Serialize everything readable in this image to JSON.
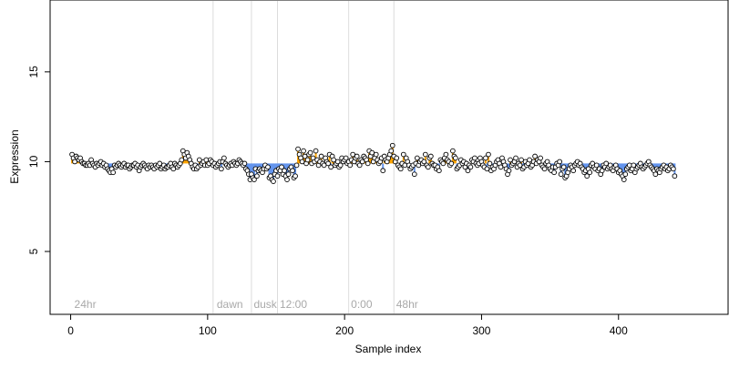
{
  "chart_data": {
    "type": "scatter",
    "title": "",
    "xlabel": "Sample index",
    "ylabel": "Expression",
    "xlim": [
      -15,
      480
    ],
    "ylim": [
      1.5,
      19.0
    ],
    "baseline": 9.9,
    "x_ticks": [
      0,
      100,
      200,
      300,
      400
    ],
    "y_ticks": [
      5,
      10,
      15
    ],
    "tick_labels_x": [
      "0",
      "100",
      "200",
      "300",
      "400"
    ],
    "tick_labels_y": [
      "5",
      "10",
      "15"
    ],
    "colors": {
      "above": "#ffa500",
      "below": "#6495ed",
      "point_stroke": "#000000",
      "point_fill": "#ffffff",
      "annotation": "#a9a9a9",
      "vline": "#dcdcdc"
    },
    "vlines": [
      104,
      132,
      151,
      203,
      236
    ],
    "annotations": [
      {
        "x": 2,
        "text": "24hr"
      },
      {
        "x": 106,
        "text": "dawn"
      },
      {
        "x": 133,
        "text": "dusk"
      },
      {
        "x": 152,
        "text": "12:00"
      },
      {
        "x": 204,
        "text": "0:00"
      },
      {
        "x": 237,
        "text": "48hr"
      }
    ],
    "y": [
      10.4,
      10.2,
      10.0,
      10.3,
      10.2,
      10.1,
      10.2,
      10.0,
      9.9,
      9.9,
      9.8,
      9.8,
      9.9,
      9.8,
      10.1,
      9.9,
      9.8,
      9.7,
      9.9,
      9.8,
      9.9,
      10.0,
      9.8,
      9.9,
      9.7,
      9.8,
      9.6,
      9.5,
      9.4,
      9.6,
      9.4,
      9.8,
      9.7,
      9.8,
      9.9,
      9.8,
      9.7,
      9.8,
      9.9,
      9.7,
      9.8,
      9.8,
      9.6,
      9.7,
      9.8,
      9.8,
      9.9,
      9.7,
      9.8,
      9.5,
      9.7,
      9.8,
      9.9,
      9.8,
      9.7,
      9.6,
      9.8,
      9.7,
      9.8,
      9.7,
      9.6,
      9.8,
      9.7,
      9.8,
      9.9,
      9.6,
      9.7,
      9.8,
      9.6,
      9.7,
      9.7,
      9.8,
      9.9,
      9.7,
      9.6,
      9.9,
      9.8,
      9.7,
      9.8,
      9.9,
      10.1,
      10.6,
      10.4,
      10.2,
      10.5,
      10.3,
      10.1,
      9.9,
      9.7,
      9.6,
      9.8,
      9.6,
      9.7,
      10.1,
      9.8,
      9.9,
      10.0,
      9.8,
      10.1,
      9.8,
      9.9,
      10.1,
      10.0,
      9.8,
      9.9,
      9.7,
      9.8,
      9.9,
      10.0,
      9.6,
      10.0,
      10.2,
      9.9,
      9.8,
      9.7,
      9.8,
      9.9,
      9.8,
      10.0,
      9.9,
      9.8,
      9.9,
      10.1,
      10.0,
      9.9,
      9.8,
      9.9,
      9.6,
      9.5,
      9.3,
      9.0,
      9.3,
      9.1,
      9.0,
      9.6,
      9.2,
      9.5,
      9.6,
      9.5,
      9.4,
      9.6,
      9.8,
      9.6,
      9.7,
      9.1,
      9.2,
      9.0,
      8.9,
      9.3,
      9.5,
      9.2,
      9.6,
      9.5,
      9.7,
      9.3,
      9.5,
      9.2,
      9.0,
      9.3,
      9.6,
      9.7,
      9.5,
      9.1,
      9.2,
      9.8,
      10.7,
      10.4,
      10.2,
      10.0,
      10.6,
      10.3,
      9.9,
      10.1,
      10.4,
      10.5,
      9.9,
      10.2,
      10.0,
      10.6,
      10.1,
      9.8,
      10.0,
      10.3,
      9.9,
      9.8,
      10.2,
      10.0,
      9.9,
      10.4,
      9.7,
      10.3,
      10.1,
      9.8,
      9.9,
      10.0,
      9.7,
      9.8,
      10.2,
      10.0,
      10.1,
      10.2,
      9.9,
      10.0,
      9.8,
      10.1,
      10.4,
      10.0,
      10.2,
      10.3,
      9.9,
      9.8,
      10.1,
      10.0,
      10.3,
      10.2,
      10.1,
      9.9,
      10.6,
      10.3,
      10.5,
      10.0,
      10.2,
      10.4,
      10.1,
      9.9,
      10.0,
      10.2,
      9.5,
      10.3,
      10.1,
      10.0,
      10.2,
      10.4,
      10.6,
      10.9,
      10.3,
      10.0,
      10.2,
      9.8,
      9.7,
      9.6,
      9.9,
      10.4,
      9.8,
      10.2,
      10.0,
      9.8,
      9.6,
      9.7,
      9.8,
      9.3,
      9.9,
      10.2,
      9.8,
      10.0,
      10.1,
      9.9,
      10.0,
      10.4,
      9.8,
      9.7,
      10.2,
      10.3,
      9.9,
      9.8,
      9.8,
      9.6,
      9.7,
      9.5,
      10.1,
      10.0,
      9.9,
      10.2,
      10.4,
      10.1,
      10.0,
      9.8,
      9.9,
      10.6,
      10.3,
      10.2,
      9.6,
      9.7,
      9.8,
      10.1,
      9.9,
      10.0,
      9.7,
      9.9,
      9.5,
      9.8,
      9.7,
      10.1,
      10.0,
      10.2,
      9.9,
      9.8,
      9.9,
      10.2,
      10.0,
      9.8,
      9.7,
      10.2,
      9.6,
      10.4,
      9.9,
      9.5,
      9.7,
      9.6,
      9.8,
      10.0,
      10.1,
      9.9,
      9.7,
      10.2,
      10.0,
      9.8,
      9.6,
      9.3,
      9.5,
      10.1,
      9.8,
      9.9,
      10.0,
      10.2,
      9.7,
      9.9,
      9.8,
      10.1,
      9.6,
      9.7,
      10.0,
      9.8,
      9.9,
      10.1,
      9.7,
      9.8,
      10.0,
      10.3,
      9.9,
      10.1,
      10.0,
      10.2,
      9.8,
      9.7,
      9.6,
      9.9,
      10.0,
      9.8,
      9.6,
      9.5,
      9.7,
      9.4,
      9.7,
      9.9,
      9.8,
      10.0,
      9.3,
      9.6,
      9.7,
      9.1,
      9.2,
      9.4,
      9.6,
      9.8,
      9.7,
      9.5,
      9.8,
      9.9,
      10.0,
      9.8,
      9.9,
      9.7,
      9.6,
      9.4,
      9.5,
      9.2,
      9.6,
      9.4,
      9.8,
      9.9,
      9.7,
      9.6,
      9.8,
      9.5,
      9.6,
      9.3,
      9.5,
      9.8,
      9.7,
      9.9,
      9.6,
      9.7,
      9.8,
      9.6,
      9.5,
      9.7,
      9.8,
      9.6,
      9.4,
      9.5,
      9.3,
      9.2,
      9.0,
      9.3,
      9.6,
      9.7,
      9.8,
      9.5,
      9.6,
      9.8,
      9.4,
      9.6,
      9.7,
      9.8,
      9.9,
      9.7,
      9.6,
      9.7,
      9.8,
      9.9,
      10.0,
      9.8,
      9.7,
      9.6,
      9.5,
      9.3,
      9.6,
      9.5,
      9.4,
      9.6,
      9.7,
      9.8,
      9.6,
      9.7,
      9.5,
      9.6,
      9.8,
      9.7,
      9.6,
      9.2
    ]
  }
}
